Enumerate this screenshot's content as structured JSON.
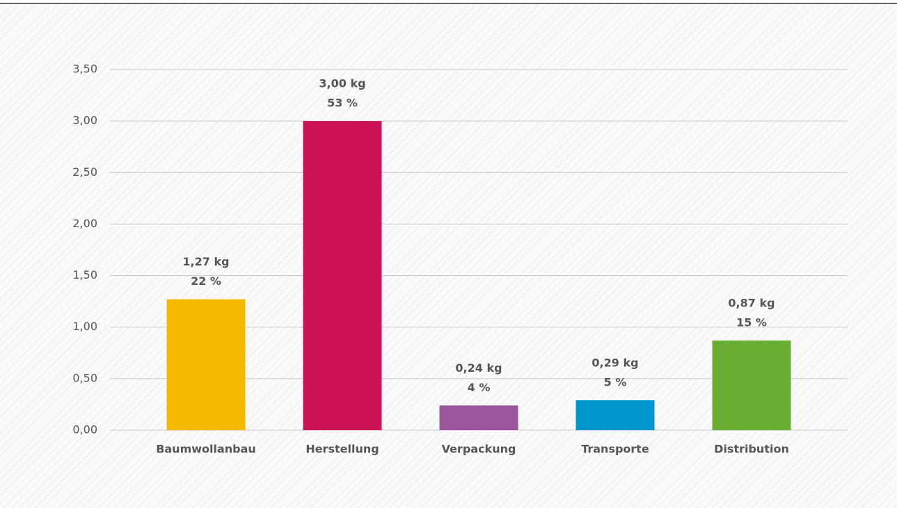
{
  "chart_data": {
    "type": "bar",
    "categories": [
      "Baumwollanbau",
      "Herstellung",
      "Verpackung",
      "Transporte",
      "Distribution"
    ],
    "values": [
      1.27,
      3.0,
      0.24,
      0.29,
      0.87
    ],
    "value_labels": [
      "1,27 kg",
      "3,00 kg",
      "0,24 kg",
      "0,29 kg",
      "0,87 kg"
    ],
    "percents": [
      22,
      53,
      4,
      5,
      15
    ],
    "percent_labels": [
      "22 %",
      "53 %",
      "4 %",
      "5 %",
      "15 %"
    ],
    "colors": [
      "#f5b800",
      "#cc1256",
      "#9b569b",
      "#0097cf",
      "#6aaf33"
    ],
    "ylim": [
      0,
      3.5
    ],
    "yticks": [
      {
        "value": 0,
        "label": "0,00"
      },
      {
        "value": 0.5,
        "label": "0,50"
      },
      {
        "value": 1,
        "label": "1,00"
      },
      {
        "value": 1.5,
        "label": "1,50"
      },
      {
        "value": 2,
        "label": "2,00"
      },
      {
        "value": 2.5,
        "label": "2,50"
      },
      {
        "value": 3,
        "label": "3,00"
      },
      {
        "value": 3.5,
        "label": "3,50"
      }
    ],
    "grid": true
  }
}
